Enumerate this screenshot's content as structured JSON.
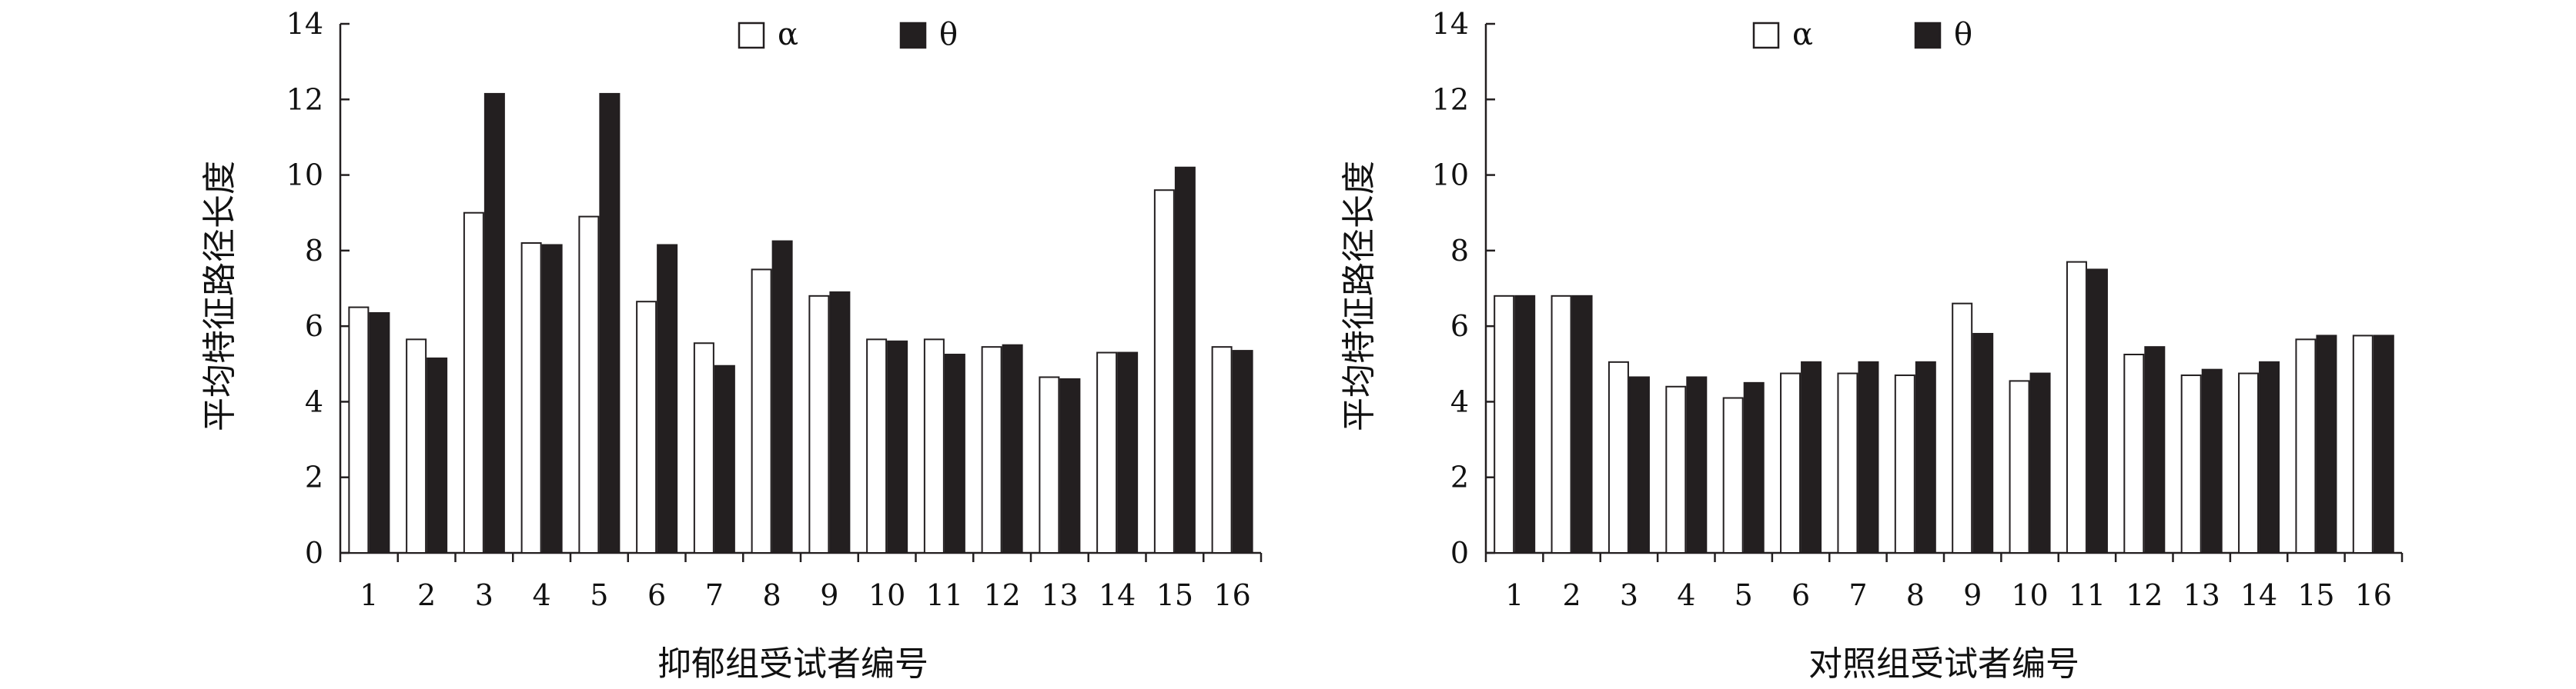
{
  "chart_data": [
    {
      "type": "bar",
      "xlabel": "抑郁组受试者编号",
      "ylabel": "平均特征路径长度",
      "ylim": [
        0,
        14
      ],
      "yticks": [
        0,
        2,
        4,
        6,
        8,
        10,
        12,
        14
      ],
      "grid": false,
      "legend_position": "top-center",
      "categories": [
        "1",
        "2",
        "3",
        "4",
        "5",
        "6",
        "7",
        "8",
        "9",
        "10",
        "11",
        "12",
        "13",
        "14",
        "15",
        "16"
      ],
      "series": [
        {
          "name": "α",
          "color": "#ffffff",
          "values": [
            6.5,
            5.65,
            9.0,
            8.2,
            8.9,
            6.65,
            5.55,
            7.5,
            6.8,
            5.65,
            5.65,
            5.45,
            4.65,
            5.3,
            9.6,
            5.45
          ]
        },
        {
          "name": "θ",
          "color": "#231f20",
          "values": [
            6.35,
            5.15,
            12.15,
            8.15,
            12.15,
            8.15,
            4.95,
            8.25,
            6.9,
            5.6,
            5.25,
            5.5,
            4.6,
            5.3,
            10.2,
            5.35
          ]
        }
      ]
    },
    {
      "type": "bar",
      "xlabel": "对照组受试者编号",
      "ylabel": "平均特征路径长度",
      "ylim": [
        0,
        14
      ],
      "yticks": [
        0,
        2,
        4,
        6,
        8,
        10,
        12,
        14
      ],
      "grid": false,
      "legend_position": "top-center",
      "categories": [
        "1",
        "2",
        "3",
        "4",
        "5",
        "6",
        "7",
        "8",
        "9",
        "10",
        "11",
        "12",
        "13",
        "14",
        "15",
        "16"
      ],
      "series": [
        {
          "name": "α",
          "color": "#ffffff",
          "values": [
            6.8,
            6.8,
            5.05,
            4.4,
            4.1,
            4.75,
            4.75,
            4.7,
            6.6,
            4.55,
            7.7,
            5.25,
            4.7,
            4.75,
            5.65,
            5.75
          ]
        },
        {
          "name": "θ",
          "color": "#231f20",
          "values": [
            6.8,
            6.8,
            4.65,
            4.65,
            4.5,
            5.05,
            5.05,
            5.05,
            5.8,
            4.75,
            7.5,
            5.45,
            4.85,
            5.05,
            5.75,
            5.75
          ]
        }
      ]
    }
  ]
}
